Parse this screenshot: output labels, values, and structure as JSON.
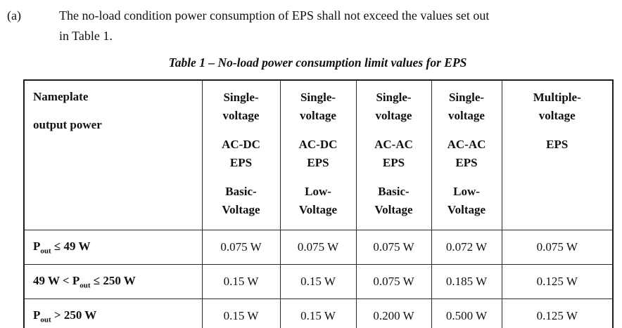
{
  "clause": {
    "label": "(a)",
    "text_lines": [
      "The no-load condition power consumption of EPS shall not exceed the values set out",
      "in Table 1."
    ]
  },
  "caption": "Table 1 – No-load power consumption limit values for EPS",
  "table": {
    "corner": {
      "line1": "Nameplate",
      "line2": "output power"
    },
    "columns": [
      {
        "group1": [
          "Single-",
          "voltage"
        ],
        "group2": [
          "AC-DC",
          "EPS"
        ],
        "group3": [
          "Basic-",
          "Voltage"
        ]
      },
      {
        "group1": [
          "Single-",
          "voltage"
        ],
        "group2": [
          "AC-DC",
          "EPS"
        ],
        "group3": [
          "Low-",
          "Voltage"
        ]
      },
      {
        "group1": [
          "Single-",
          "voltage"
        ],
        "group2": [
          "AC-AC",
          "EPS"
        ],
        "group3": [
          "Basic-",
          "Voltage"
        ]
      },
      {
        "group1": [
          "Single-",
          "voltage"
        ],
        "group2": [
          "AC-AC",
          "EPS"
        ],
        "group3": [
          "Low-",
          "Voltage"
        ]
      },
      {
        "group1": [
          "Multiple-",
          "voltage"
        ],
        "group2": [
          "EPS"
        ],
        "group3": []
      }
    ],
    "rows": [
      {
        "label_pre": "P",
        "label_sub": "out",
        "label_post": " ≤ 49 W",
        "values": [
          "0.075 W",
          "0.075 W",
          "0.075 W",
          "0.072 W",
          "0.075 W"
        ]
      },
      {
        "label_pre": "49 W < P",
        "label_sub": "out",
        "label_post": " ≤ 250 W",
        "values": [
          "0.15 W",
          "0.15 W",
          "0.075 W",
          "0.185 W",
          "0.125 W"
        ]
      },
      {
        "label_pre": "P",
        "label_sub": "out",
        "label_post": " > 250 W",
        "values": [
          "0.15 W",
          "0.15 W",
          "0.200 W",
          "0.500 W",
          "0.125 W"
        ]
      }
    ]
  }
}
